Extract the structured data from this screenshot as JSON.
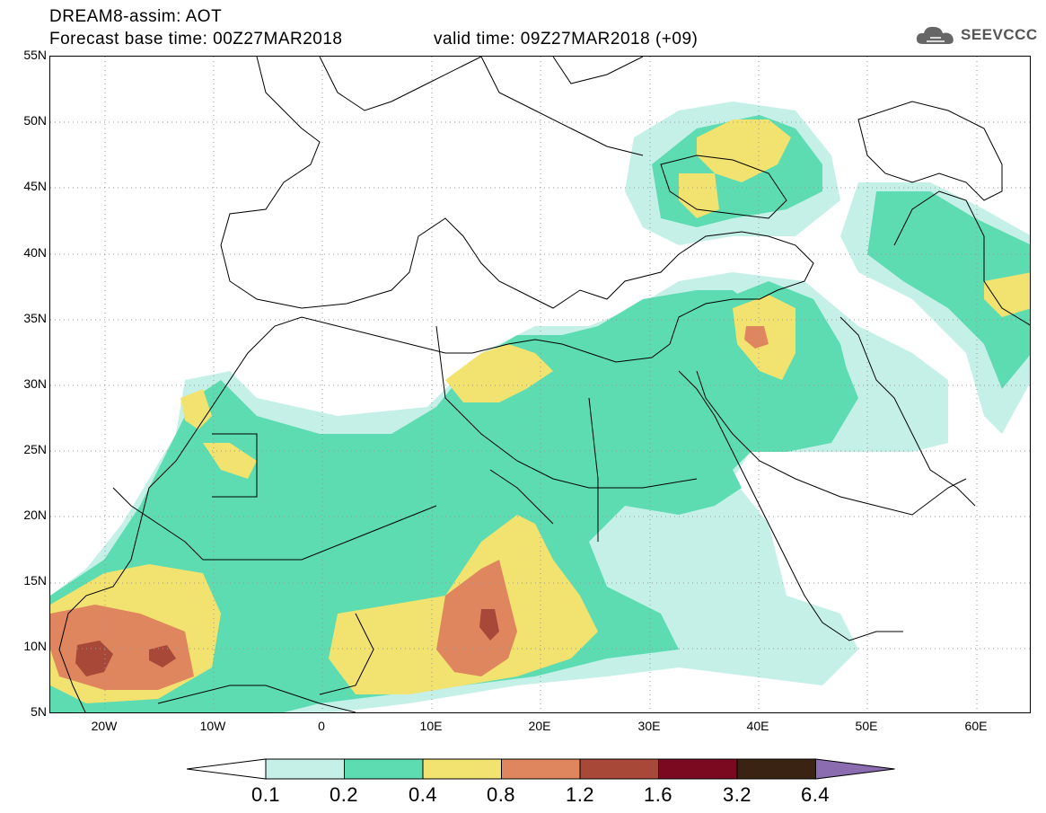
{
  "header": {
    "title_line1": "DREAM8-assim: AOT",
    "title_line2": "Forecast base time: 00Z27MAR2018",
    "valid_time": "valid time: 09Z27MAR2018 (+09)"
  },
  "logo": {
    "text": "SEEVCCC",
    "icon": "cloud-icon"
  },
  "map": {
    "lat_labels": [
      "55N",
      "50N",
      "45N",
      "40N",
      "35N",
      "30N",
      "25N",
      "20N",
      "15N",
      "10N",
      "5N"
    ],
    "lon_labels": [
      "20W",
      "10W",
      "0",
      "10E",
      "20E",
      "30E",
      "40E",
      "50E",
      "60E"
    ],
    "lon_range": [
      -25,
      65
    ],
    "lat_range": [
      5,
      55
    ],
    "grid": "dotted"
  },
  "colorbar": {
    "levels": [
      "0.1",
      "0.2",
      "0.4",
      "0.8",
      "1.2",
      "1.6",
      "3.2",
      "6.4"
    ],
    "colors": [
      "#ffffff",
      "#c4f0e8",
      "#5cdcb0",
      "#f2e26f",
      "#e0865e",
      "#a84838",
      "#7b0a20",
      "#3a2312",
      "#8c6cb0"
    ]
  }
}
